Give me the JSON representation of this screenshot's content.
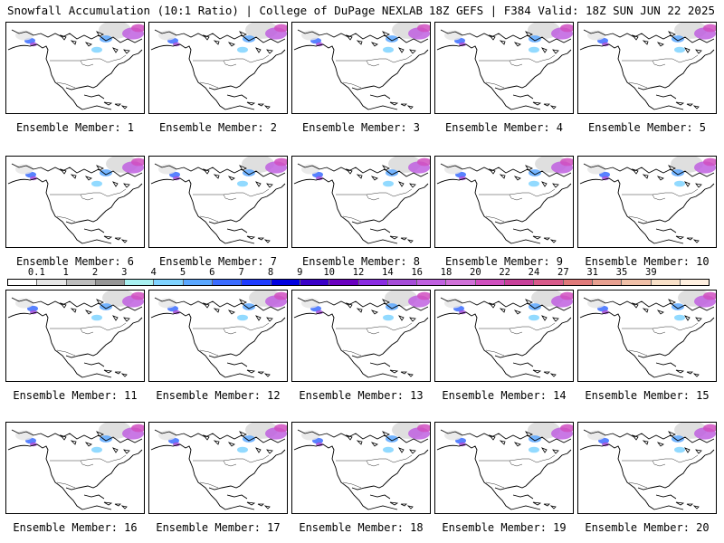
{
  "header": {
    "left": "Snowfall Accumulation (10:1 Ratio) | College of DuPage NEXLAB",
    "right": "18Z GEFS | F384 Valid: 18Z SUN JUN 22 2025"
  },
  "colorbar": {
    "labels": [
      "0.1",
      "1",
      "2",
      "3",
      "4",
      "5",
      "6",
      "7",
      "8",
      "9",
      "10",
      "12",
      "14",
      "16",
      "18",
      "20",
      "22",
      "24",
      "27",
      "31",
      "35",
      "39"
    ],
    "colors": [
      "#ffffff",
      "#e6e6e6",
      "#bdbdbd",
      "#969696",
      "#a8f0f0",
      "#7fd3ff",
      "#5aa7ff",
      "#3b6cff",
      "#1f3cff",
      "#0000e0",
      "#3a00c8",
      "#6a00c0",
      "#8a2be2",
      "#a64cd9",
      "#c060e0",
      "#d070d8",
      "#d04fbf",
      "#c8409a",
      "#d85a8a",
      "#e07a7a",
      "#e8a090",
      "#f0c0a8",
      "#f8e0c8",
      "#fff0e0"
    ]
  },
  "panels": [
    {
      "caption": "Ensemble Member: 1"
    },
    {
      "caption": "Ensemble Member: 2"
    },
    {
      "caption": "Ensemble Member: 3"
    },
    {
      "caption": "Ensemble Member: 4"
    },
    {
      "caption": "Ensemble Member: 5"
    },
    {
      "caption": "Ensemble Member: 6"
    },
    {
      "caption": "Ensemble Member: 7"
    },
    {
      "caption": "Ensemble Member: 8"
    },
    {
      "caption": "Ensemble Member: 9"
    },
    {
      "caption": "Ensemble Member: 10"
    },
    {
      "caption": "Ensemble Member: 11"
    },
    {
      "caption": "Ensemble Member: 12"
    },
    {
      "caption": "Ensemble Member: 13"
    },
    {
      "caption": "Ensemble Member: 14"
    },
    {
      "caption": "Ensemble Member: 15"
    },
    {
      "caption": "Ensemble Member: 16"
    },
    {
      "caption": "Ensemble Member: 17"
    },
    {
      "caption": "Ensemble Member: 18"
    },
    {
      "caption": "Ensemble Member: 19"
    },
    {
      "caption": "Ensemble Member: 20"
    }
  ]
}
